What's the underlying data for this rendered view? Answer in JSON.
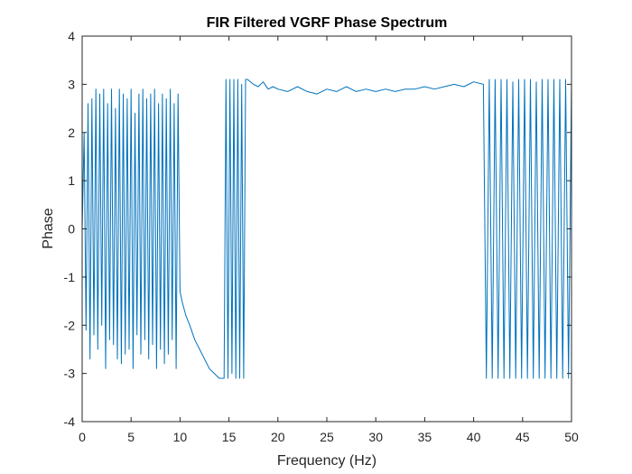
{
  "chart_data": {
    "type": "line",
    "title": "FIR Filtered VGRF Phase Spectrum",
    "xlabel": "Frequency (Hz)",
    "ylabel": "Phase",
    "xlim": [
      0,
      50
    ],
    "ylim": [
      -4,
      4
    ],
    "xticks": [
      "0",
      "5",
      "10",
      "15",
      "20",
      "25",
      "30",
      "35",
      "40",
      "45",
      "50"
    ],
    "yticks": [
      "4",
      "3",
      "2",
      "1",
      "0",
      "-1",
      "-2",
      "-3",
      "-4"
    ],
    "grid": false,
    "series": [
      {
        "color": "#0072BD",
        "x": [
          0,
          0.2,
          0.4,
          0.6,
          0.8,
          1.0,
          1.2,
          1.4,
          1.6,
          1.8,
          2.0,
          2.2,
          2.4,
          2.6,
          2.8,
          3.0,
          3.2,
          3.4,
          3.6,
          3.8,
          4.0,
          4.2,
          4.4,
          4.6,
          4.8,
          5.0,
          5.2,
          5.4,
          5.6,
          5.8,
          6.0,
          6.2,
          6.4,
          6.6,
          6.8,
          7.0,
          7.2,
          7.4,
          7.6,
          7.8,
          8.0,
          8.2,
          8.4,
          8.6,
          8.8,
          9.0,
          9.2,
          9.4,
          9.6,
          9.8,
          10.0,
          10.2,
          10.6,
          11.0,
          11.5,
          12.0,
          12.5,
          13.0,
          13.5,
          14.0,
          14.5,
          14.7,
          14.9,
          15.1,
          15.3,
          15.5,
          15.7,
          15.9,
          16.1,
          16.3,
          16.5,
          16.7,
          16.9,
          17.5,
          18.0,
          18.5,
          19.0,
          19.5,
          20.0,
          21.0,
          22.0,
          23.0,
          24.0,
          25.0,
          26.0,
          27.0,
          28.0,
          29.0,
          30.0,
          31.0,
          32.0,
          33.0,
          34.0,
          35.0,
          36.0,
          37.0,
          38.0,
          39.0,
          40.0,
          41.0,
          41.3,
          41.6,
          41.9,
          42.2,
          42.5,
          42.8,
          43.1,
          43.4,
          43.7,
          44.0,
          44.3,
          44.6,
          44.9,
          45.2,
          45.5,
          45.8,
          46.1,
          46.4,
          46.7,
          47.0,
          47.3,
          47.6,
          47.9,
          48.2,
          48.5,
          48.8,
          49.1,
          49.4,
          49.7,
          50.0
        ],
        "y": [
          0,
          2.0,
          -2.1,
          2.6,
          -2.7,
          2.7,
          -2.2,
          2.9,
          -2.5,
          2.8,
          -2.0,
          2.9,
          -2.9,
          2.6,
          -2.3,
          2.9,
          -2.4,
          2.5,
          -2.7,
          2.9,
          -2.8,
          2.8,
          -2.6,
          2.7,
          -2.5,
          2.9,
          -2.9,
          2.4,
          -2.2,
          2.8,
          -2.6,
          2.9,
          -2.3,
          2.7,
          -2.7,
          2.8,
          -2.4,
          2.9,
          -2.9,
          2.6,
          -2.5,
          2.8,
          -2.8,
          2.7,
          -2.6,
          2.9,
          -2.3,
          2.6,
          -2.9,
          2.8,
          -1.3,
          -1.5,
          -1.8,
          -2.0,
          -2.3,
          -2.5,
          -2.7,
          -2.9,
          -3.0,
          -3.1,
          -3.1,
          3.1,
          -3.1,
          3.1,
          -3.0,
          3.1,
          -3.1,
          3.1,
          -3.1,
          3.0,
          -3.1,
          3.1,
          3.1,
          3.0,
          2.95,
          3.05,
          2.9,
          2.95,
          2.9,
          2.85,
          2.95,
          2.85,
          2.8,
          2.9,
          2.85,
          2.95,
          2.85,
          2.9,
          2.85,
          2.9,
          2.85,
          2.9,
          2.9,
          2.95,
          2.9,
          2.95,
          3.0,
          2.95,
          3.05,
          3.0,
          -3.1,
          3.1,
          -3.1,
          3.1,
          -3.1,
          3.1,
          -3.1,
          3.1,
          -3.1,
          3.05,
          -3.1,
          3.1,
          -3.1,
          3.1,
          -3.1,
          3.1,
          -3.1,
          3.05,
          -3.1,
          3.1,
          -3.1,
          3.1,
          -3.1,
          3.1,
          -3.1,
          3.1,
          -3.1,
          3.1,
          -3.1,
          3.1
        ]
      }
    ]
  }
}
